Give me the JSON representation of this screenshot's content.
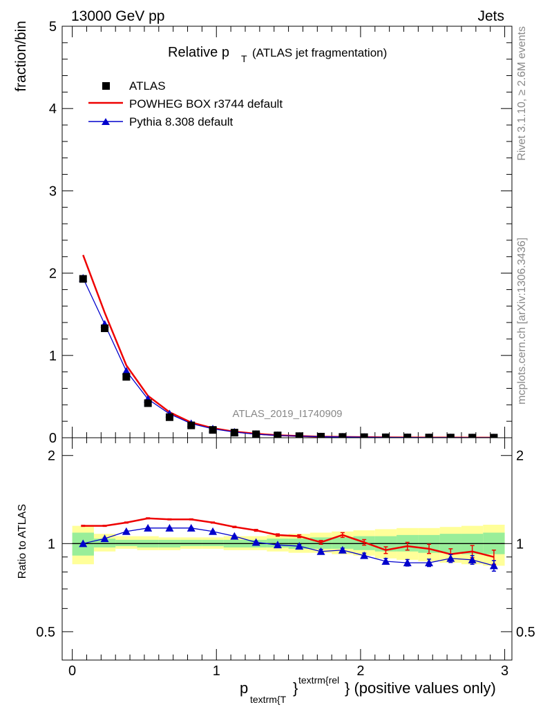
{
  "header": {
    "left": "13000 GeV pp",
    "right": "Jets"
  },
  "side_text": {
    "rivet": "Rivet 3.1.10, ≥ 2.6M events",
    "mcplots": "mcplots.cern.ch [arXiv:1306.3436]"
  },
  "chart_data": [
    {
      "type": "line",
      "title_main": "Relative p",
      "title_sub": "T",
      "title_rest": "(ATLAS jet fragmentation)",
      "ylabel": "fraction/bin",
      "watermark": "ATLAS_2019_I1740909",
      "xlim": [
        -0.07,
        3.05
      ],
      "ylim": [
        0,
        5
      ],
      "yticks": [
        "0",
        "1",
        "2",
        "3",
        "4",
        "5"
      ],
      "x": [
        0.075,
        0.225,
        0.375,
        0.525,
        0.675,
        0.825,
        0.975,
        1.125,
        1.275,
        1.425,
        1.575,
        1.725,
        1.875,
        2.025,
        2.175,
        2.325,
        2.475,
        2.625,
        2.775,
        2.925
      ],
      "series": [
        {
          "name": "ATLAS",
          "color": "#000000",
          "marker": "square",
          "values": [
            1.93,
            1.33,
            0.74,
            0.42,
            0.25,
            0.15,
            0.095,
            0.062,
            0.042,
            0.028,
            0.019,
            0.013,
            0.0095,
            0.0068,
            0.0049,
            0.0035,
            0.0025,
            0.0019,
            0.0014,
            0.0011
          ]
        },
        {
          "name": "POWHEG BOX r3744 default",
          "color": "#ee0000",
          "marker": "none",
          "values": [
            2.22,
            1.52,
            0.88,
            0.51,
            0.31,
            0.186,
            0.117,
            0.074,
            0.048,
            0.03,
            0.0205,
            0.013,
            0.0101,
            0.0069,
            0.0047,
            0.0034,
            0.0024,
            0.0017,
            0.0013,
            0.001
          ]
        },
        {
          "name": "Pythia 8.308 default",
          "color": "#0000cc",
          "marker": "triangle",
          "values": [
            1.94,
            1.38,
            0.81,
            0.47,
            0.29,
            0.172,
            0.108,
            0.069,
            0.042,
            0.028,
            0.0188,
            0.0122,
            0.0091,
            0.0062,
            0.0043,
            0.003,
            0.0022,
            0.0017,
            0.0012,
            0.00095
          ]
        }
      ],
      "legend_position": "top-left"
    },
    {
      "type": "line",
      "ylabel": "Ratio to ATLAS",
      "xlabel_main": "p",
      "xlabel_sub": "textrm{T",
      "xlabel_sup": "textrm{rel",
      "xlabel_brace": "}",
      "xlabel_rest": "} (positive values only)",
      "xlim": [
        -0.07,
        3.05
      ],
      "ylim": [
        0.4,
        2.3
      ],
      "yscale": "log",
      "xticks": [
        "0",
        "1",
        "2",
        "3"
      ],
      "yticks": [
        "0.5",
        "1",
        "2"
      ],
      "x_edges": [
        0,
        0.15,
        0.3,
        0.45,
        0.6,
        0.75,
        0.9,
        1.05,
        1.2,
        1.35,
        1.5,
        1.65,
        1.8,
        1.95,
        2.1,
        2.25,
        2.4,
        2.55,
        2.7,
        2.85,
        3.0
      ],
      "band_yellow_lo": [
        0.85,
        0.94,
        0.96,
        0.95,
        0.95,
        0.96,
        0.96,
        0.95,
        0.95,
        0.94,
        0.93,
        0.93,
        0.92,
        0.91,
        0.89,
        0.88,
        0.87,
        0.86,
        0.85,
        0.84
      ],
      "band_yellow_hi": [
        1.15,
        1.08,
        1.06,
        1.06,
        1.05,
        1.05,
        1.05,
        1.06,
        1.06,
        1.07,
        1.08,
        1.09,
        1.1,
        1.11,
        1.12,
        1.13,
        1.13,
        1.14,
        1.15,
        1.16
      ],
      "band_green_lo": [
        0.91,
        0.97,
        0.98,
        0.97,
        0.97,
        0.98,
        0.98,
        0.97,
        0.97,
        0.97,
        0.96,
        0.96,
        0.96,
        0.95,
        0.94,
        0.94,
        0.93,
        0.93,
        0.92,
        0.92
      ],
      "band_green_hi": [
        1.09,
        1.04,
        1.03,
        1.03,
        1.03,
        1.03,
        1.03,
        1.03,
        1.03,
        1.04,
        1.04,
        1.05,
        1.05,
        1.06,
        1.06,
        1.07,
        1.07,
        1.08,
        1.08,
        1.09
      ],
      "x": [
        0.075,
        0.225,
        0.375,
        0.525,
        0.675,
        0.825,
        0.975,
        1.125,
        1.275,
        1.425,
        1.575,
        1.725,
        1.875,
        2.025,
        2.175,
        2.325,
        2.475,
        2.625,
        2.775,
        2.925
      ],
      "series": [
        {
          "name": "POWHEG BOX r3744 default",
          "color": "#ee0000",
          "marker": "none",
          "values": [
            1.15,
            1.15,
            1.18,
            1.22,
            1.21,
            1.21,
            1.18,
            1.14,
            1.11,
            1.07,
            1.06,
            1.01,
            1.07,
            1.01,
            0.95,
            0.98,
            0.96,
            0.92,
            0.94,
            0.9
          ],
          "errors": [
            0.005,
            0.005,
            0.005,
            0.005,
            0.005,
            0.005,
            0.005,
            0.006,
            0.008,
            0.01,
            0.012,
            0.015,
            0.02,
            0.022,
            0.025,
            0.03,
            0.035,
            0.04,
            0.045,
            0.05
          ]
        },
        {
          "name": "Pythia 8.308 default",
          "color": "#0000cc",
          "marker": "triangle",
          "values": [
            1.0,
            1.04,
            1.1,
            1.13,
            1.13,
            1.13,
            1.1,
            1.06,
            1.01,
            0.99,
            0.98,
            0.94,
            0.95,
            0.91,
            0.87,
            0.86,
            0.86,
            0.89,
            0.88,
            0.84
          ],
          "errors": [
            0.005,
            0.005,
            0.005,
            0.005,
            0.005,
            0.005,
            0.005,
            0.006,
            0.008,
            0.01,
            0.012,
            0.015,
            0.015,
            0.018,
            0.02,
            0.022,
            0.025,
            0.028,
            0.03,
            0.035
          ]
        }
      ]
    }
  ]
}
